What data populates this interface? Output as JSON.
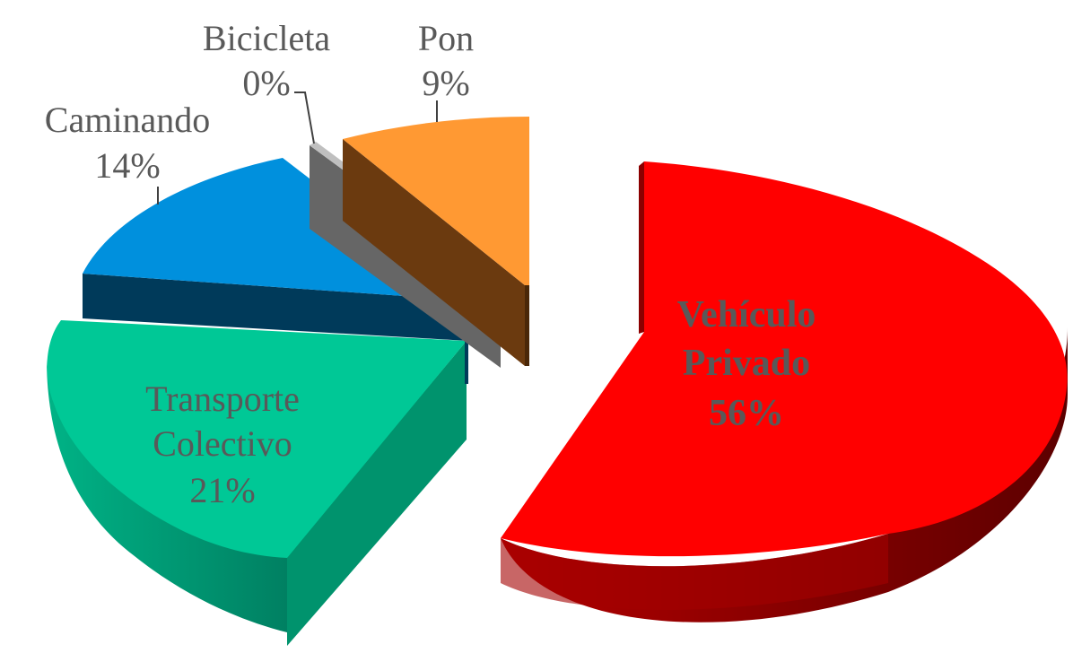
{
  "chart_data": {
    "type": "pie",
    "style": "3d-exploded",
    "title": "",
    "legend": "none",
    "slices": [
      {
        "name_lines": [
          "Vehículo",
          "Privado"
        ],
        "label": "56%",
        "value": 56,
        "color": "#ff0000",
        "side_color": "#8b0000",
        "label_bold": true
      },
      {
        "name_lines": [
          "Transporte",
          "Colectivo"
        ],
        "label": "21%",
        "value": 21,
        "color": "#00c896",
        "side_color": "#008f6b",
        "label_bold": false
      },
      {
        "name_lines": [
          "Caminando"
        ],
        "label": "14%",
        "value": 14,
        "color": "#0090dd",
        "side_color": "#003a5a",
        "label_bold": false
      },
      {
        "name_lines": [
          "Bicicleta"
        ],
        "label": "0%",
        "value": 0,
        "color": "#bfbfbf",
        "side_color": "#666666",
        "label_bold": false
      },
      {
        "name_lines": [
          "Pon"
        ],
        "label": "9%",
        "value": 9,
        "color": "#ff9933",
        "side_color": "#6b3a0f",
        "label_bold": false
      }
    ]
  }
}
